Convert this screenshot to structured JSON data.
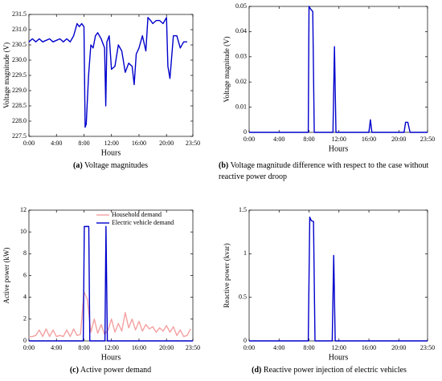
{
  "chart_data": [
    {
      "type": "line",
      "label": "(a)",
      "caption": "Voltage magnitudes",
      "xlabel": "Hours",
      "ylabel": "Voltage magnitude (V)",
      "xlim": [
        0,
        23.8333
      ],
      "xticks": [
        {
          "value": 0,
          "label": "0:00"
        },
        {
          "value": 4,
          "label": "4:00"
        },
        {
          "value": 8,
          "label": "8:00"
        },
        {
          "value": 12,
          "label": "12:00"
        },
        {
          "value": 16,
          "label": "16:00"
        },
        {
          "value": 20,
          "label": "20:00"
        },
        {
          "value": 23.8333,
          "label": "23:50"
        }
      ],
      "ylim": [
        227.5,
        231.5
      ],
      "yticks": [
        227.5,
        {
          "value": 228,
          "label": "228.0"
        },
        228.5,
        {
          "value": 229,
          "label": "229.0"
        },
        229.5,
        {
          "value": 230,
          "label": "230.0"
        },
        230.5,
        {
          "value": 231,
          "label": "231.0"
        },
        231.5
      ],
      "series": [
        {
          "color": "#0000cc",
          "x": [
            0,
            0.5,
            1,
            1.5,
            2,
            2.5,
            3,
            3.5,
            4,
            4.5,
            5,
            5.5,
            6,
            6.5,
            7,
            7.33,
            7.67,
            8,
            8.17,
            8.33,
            8.67,
            9,
            9.33,
            9.67,
            10,
            10.5,
            11,
            11.17,
            11.33,
            11.67,
            12,
            12.5,
            13,
            13.5,
            14,
            14.5,
            15,
            15.3,
            15.6,
            16,
            16.5,
            17,
            17.3,
            17.7,
            18,
            18.5,
            19,
            19.5,
            20,
            20.2,
            20.5,
            21,
            21.5,
            22,
            22.5,
            23
          ],
          "values": [
            230.6,
            230.7,
            230.6,
            230.7,
            230.6,
            230.65,
            230.7,
            230.6,
            230.65,
            230.7,
            230.6,
            230.7,
            230.6,
            230.8,
            231.2,
            231.1,
            231.2,
            231.1,
            227.8,
            227.9,
            229.5,
            230.5,
            230.4,
            230.8,
            230.9,
            230.7,
            230.4,
            228.5,
            230.6,
            230.8,
            229.7,
            229.8,
            230.5,
            230.3,
            229.6,
            229.9,
            229.8,
            229.2,
            230.2,
            230.4,
            230.8,
            230.3,
            231.4,
            231.3,
            231.2,
            231.3,
            231.3,
            231.2,
            231.4,
            229.8,
            229.4,
            230.8,
            230.8,
            230.4,
            230.6,
            230.6
          ]
        }
      ]
    },
    {
      "type": "line",
      "label": "(b)",
      "caption": "Voltage magnitude difference with respect to the case without reactive power droop",
      "xlabel": "Hours",
      "ylabel": "Voltage magnitude (V)",
      "xlim": [
        0,
        23.8333
      ],
      "xticks": [
        {
          "value": 0,
          "label": "0:00"
        },
        {
          "value": 4,
          "label": "4:00"
        },
        {
          "value": 8,
          "label": "8:00"
        },
        {
          "value": 12,
          "label": "12:00"
        },
        {
          "value": 16,
          "label": "16:00"
        },
        {
          "value": 20,
          "label": "20:00"
        },
        {
          "value": 23.8333,
          "label": "23:50"
        }
      ],
      "ylim": [
        0,
        0.05
      ],
      "yticks": [
        0,
        0.01,
        0.02,
        0.03,
        0.04,
        0.05
      ],
      "series": [
        {
          "color": "#0000cc",
          "x": [
            0,
            7.9,
            8.0,
            8.2,
            8.5,
            8.7,
            11.2,
            11.4,
            11.6,
            16,
            16.2,
            16.4,
            20.7,
            20.9,
            21.2,
            21.5,
            23.8333
          ],
          "values": [
            0,
            0,
            0.05,
            0.049,
            0.048,
            0,
            0,
            0.034,
            0,
            0,
            0.005,
            0,
            0,
            0.004,
            0.004,
            0,
            0
          ]
        }
      ]
    },
    {
      "type": "line",
      "label": "(c)",
      "caption": "Active power demand",
      "xlabel": "Hours",
      "ylabel": "Active power (kW)",
      "legend": "upper right",
      "xlim": [
        0,
        23.8333
      ],
      "xticks": [
        {
          "value": 0,
          "label": "0:00"
        },
        {
          "value": 4,
          "label": "4:00"
        },
        {
          "value": 8,
          "label": "8:00"
        },
        {
          "value": 12,
          "label": "12:00"
        },
        {
          "value": 16,
          "label": "16:00"
        },
        {
          "value": 20,
          "label": "20:00"
        },
        {
          "value": 23.8333,
          "label": "23:50"
        }
      ],
      "ylim": [
        0,
        12
      ],
      "yticks": [
        0,
        2,
        4,
        6,
        8,
        10,
        12
      ],
      "series": [
        {
          "name": "Household demand",
          "color": "#f4a0a0",
          "x": [
            0,
            0.5,
            1,
            1.5,
            2,
            2.5,
            3,
            3.5,
            4,
            4.5,
            5,
            5.5,
            6,
            6.5,
            7,
            7.5,
            8,
            8.5,
            9,
            9.5,
            10,
            10.5,
            11,
            11.5,
            12,
            12.5,
            13,
            13.5,
            14,
            14.5,
            15,
            15.5,
            16,
            16.5,
            17,
            17.5,
            18,
            18.5,
            19,
            19.5,
            20,
            20.5,
            21,
            21.5,
            22,
            22.5,
            23,
            23.5
          ],
          "values": [
            0.4,
            0.4,
            0.5,
            1.0,
            0.4,
            1.1,
            0.4,
            1.0,
            0.4,
            0.5,
            0.4,
            1.0,
            0.4,
            1.1,
            0.5,
            0.6,
            4.5,
            3.8,
            0.8,
            2.0,
            0.7,
            1.5,
            0.6,
            1.0,
            2.0,
            0.8,
            1.6,
            0.9,
            2.6,
            1.2,
            2.0,
            1.0,
            1.8,
            0.9,
            1.5,
            1.1,
            1.3,
            0.8,
            1.2,
            0.9,
            1.4,
            0.8,
            1.3,
            0.5,
            1.0,
            0.4,
            0.5,
            1.1
          ]
        },
        {
          "name": "Electric vehicle demand",
          "color": "#0000cc",
          "x": [
            0,
            7.9,
            8.05,
            8.7,
            8.85,
            11.05,
            11.2,
            11.4,
            23.8333
          ],
          "values": [
            0,
            0,
            10.5,
            10.5,
            0,
            0,
            10.5,
            0,
            0
          ]
        }
      ]
    },
    {
      "type": "line",
      "label": "(d)",
      "caption": "Reactive power injection of electric vehicles",
      "xlabel": "Hours",
      "ylabel": "Reactive power (kvar)",
      "xlim": [
        0,
        23.8333
      ],
      "xticks": [
        {
          "value": 0,
          "label": "0:00"
        },
        {
          "value": 4,
          "label": "4:00"
        },
        {
          "value": 8,
          "label": "8:00"
        },
        {
          "value": 12,
          "label": "12:00"
        },
        {
          "value": 16,
          "label": "16:00"
        },
        {
          "value": 20,
          "label": "20:00"
        },
        {
          "value": 23.8333,
          "label": "23:50"
        }
      ],
      "ylim": [
        0,
        1.5
      ],
      "yticks": [
        0,
        0.5,
        1,
        1.5
      ],
      "series": [
        {
          "color": "#0000cc",
          "x": [
            0,
            7.9,
            8.1,
            8.3,
            8.6,
            8.8,
            11.1,
            11.3,
            11.5,
            23.8333
          ],
          "values": [
            0,
            0,
            1.42,
            1.38,
            1.37,
            0,
            0,
            0.98,
            0,
            0
          ]
        }
      ]
    }
  ]
}
